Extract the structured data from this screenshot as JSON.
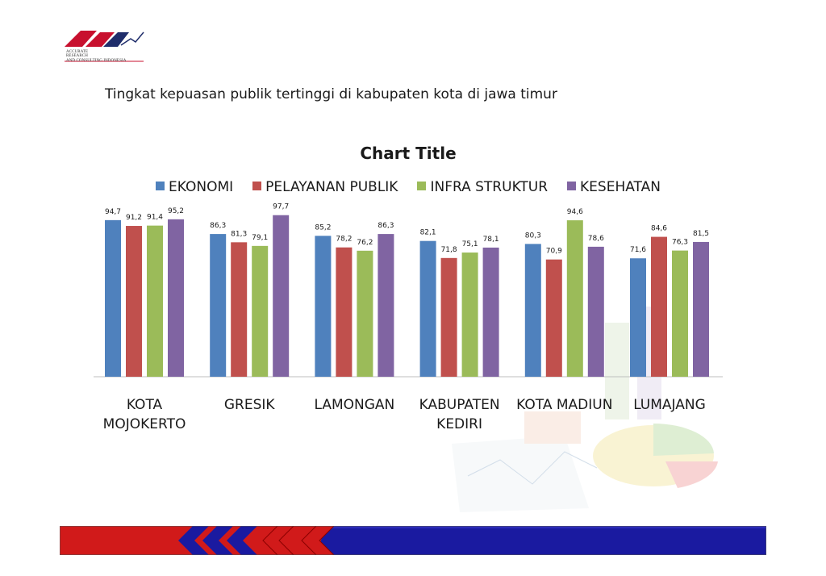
{
  "page": {
    "heading": "Tingkat kepuasan publik tertinggi di kabupaten kota di jawa timur",
    "logo": {
      "lines": [
        "ACCURATE",
        "RESEARCH",
        "AND CONSULTING INDONESIA"
      ],
      "colors": {
        "red": "#c8102e",
        "navy": "#1f2d6b"
      }
    }
  },
  "chart_data": {
    "type": "bar",
    "title": "Chart Title",
    "xlabel": "",
    "ylabel": "",
    "ylim": [
      0,
      100
    ],
    "grid": false,
    "legend_position": "top",
    "categories": [
      "KOTA MOJOKERTO",
      "GRESIK",
      "LAMONGAN",
      "KABUPATEN KEDIRI",
      "KOTA MADIUN",
      "LUMAJANG"
    ],
    "category_lines": [
      [
        "KOTA",
        "MOJOKERTO"
      ],
      [
        "GRESIK"
      ],
      [
        "LAMONGAN"
      ],
      [
        "KABUPATEN",
        "KEDIRI"
      ],
      [
        "KOTA MADIUN"
      ],
      [
        "LUMAJANG"
      ]
    ],
    "series": [
      {
        "name": "EKONOMI",
        "color": "#4f81bd",
        "values": [
          94.7,
          86.3,
          85.2,
          82.1,
          80.3,
          71.6
        ],
        "labels": [
          "94,7",
          "86,3",
          "85,2",
          "82,1",
          "80,3",
          "71,6"
        ]
      },
      {
        "name": "PELAYANAN PUBLIK",
        "color": "#c0504d",
        "values": [
          91.2,
          81.3,
          78.2,
          71.8,
          70.9,
          84.6
        ],
        "labels": [
          "91,2",
          "81,3",
          "78,2",
          "71,8",
          "70,9",
          "84,6"
        ]
      },
      {
        "name": "INFRA STRUKTUR",
        "color": "#9bbb59",
        "values": [
          91.4,
          79.1,
          76.2,
          75.1,
          94.6,
          76.3
        ],
        "labels": [
          "91,4",
          "79,1",
          "76,2",
          "75,1",
          "94,6",
          "76,3"
        ]
      },
      {
        "name": "KESEHATAN",
        "color": "#8064a2",
        "values": [
          95.2,
          97.7,
          86.3,
          78.1,
          78.6,
          81.5
        ],
        "labels": [
          "95,2",
          "97,7",
          "86,3",
          "78,1",
          "78,6",
          "81,5"
        ]
      }
    ]
  }
}
